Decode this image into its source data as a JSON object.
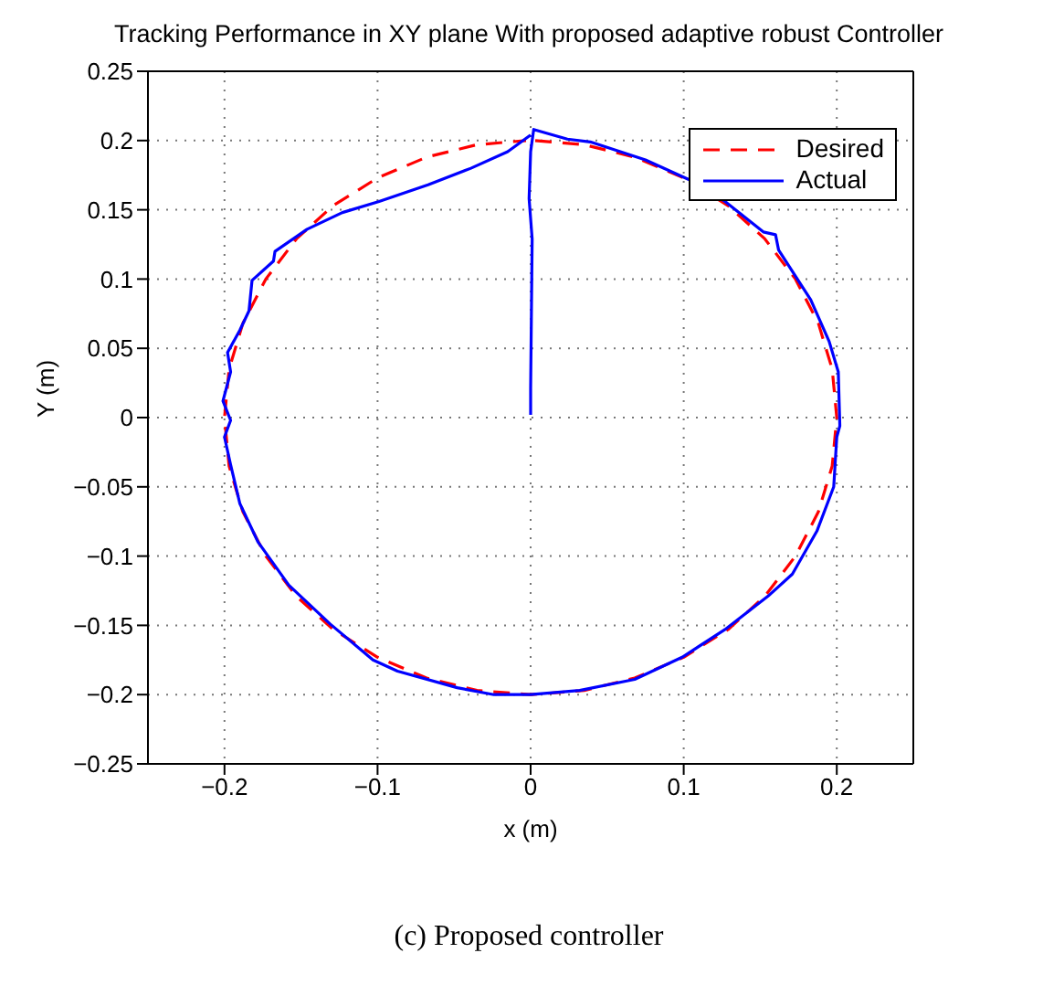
{
  "chart_data": {
    "type": "line",
    "title": "Tracking Performance in XY plane With proposed adaptive robust Controller",
    "xlabel": "x (m)",
    "ylabel": "Y (m)",
    "annotations": [
      "(c) Proposed controller"
    ],
    "xlim": [
      -0.25,
      0.25
    ],
    "xticks": [
      {
        "value": -0.2,
        "label": "−0.2"
      },
      {
        "value": -0.1,
        "label": "−0.1"
      },
      0,
      0.1,
      0.2
    ],
    "ylim": [
      -0.25,
      0.25
    ],
    "yticks": [
      {
        "value": -0.25,
        "label": "−0.25"
      },
      {
        "value": -0.2,
        "label": "−0.2"
      },
      {
        "value": -0.15,
        "label": "−0.15"
      },
      {
        "value": -0.1,
        "label": "−0.1"
      },
      {
        "value": -0.05,
        "label": "−0.05"
      },
      0,
      0.05,
      0.1,
      0.15,
      0.2,
      0.25
    ],
    "grid": true,
    "legend": "top right",
    "marker": "none",
    "series": [
      {
        "name": "Desired",
        "color": "#ff0000",
        "line_style": "dashed",
        "x": [
          0.003,
          0.035,
          0.068,
          0.1,
          0.129,
          0.153,
          0.173,
          0.188,
          0.197,
          0.2,
          0.197,
          0.188,
          0.173,
          0.153,
          0.129,
          0.1,
          0.068,
          0.035,
          0,
          -0.035,
          -0.068,
          -0.1,
          -0.129,
          -0.153,
          -0.173,
          -0.188,
          -0.197,
          -0.2,
          -0.197,
          -0.188,
          -0.173,
          -0.153,
          -0.129,
          -0.1,
          -0.068,
          -0.035,
          -0.003
        ],
        "values": [
          0.2,
          0.197,
          0.188,
          0.173,
          0.153,
          0.129,
          0.1,
          0.068,
          0.035,
          0,
          -0.035,
          -0.068,
          -0.1,
          -0.129,
          -0.153,
          -0.173,
          -0.188,
          -0.197,
          -0.2,
          -0.197,
          -0.188,
          -0.173,
          -0.153,
          -0.129,
          -0.1,
          -0.068,
          -0.035,
          0,
          0.035,
          0.068,
          0.1,
          0.129,
          0.153,
          0.173,
          0.188,
          0.197,
          0.2
        ]
      },
      {
        "name": "Actual",
        "color": "#0000ff",
        "line_style": "solid",
        "x": [
          0,
          0,
          0,
          0.001,
          -0.001,
          0,
          0.002,
          0.024,
          0.039,
          0.075,
          0.103,
          0.127,
          0.152,
          0.16,
          0.162,
          0.183,
          0.195,
          0.201,
          0.202,
          0.2,
          0.198,
          0.187,
          0.171,
          0.155,
          0.127,
          0.099,
          0.068,
          0.032,
          0,
          -0.024,
          -0.048,
          -0.087,
          -0.103,
          -0.131,
          -0.158,
          -0.178,
          -0.19,
          -0.196,
          -0.2,
          -0.196,
          -0.201,
          -0.196,
          -0.198,
          -0.19,
          -0.184,
          -0.182,
          -0.168,
          -0.167,
          -0.146,
          -0.123,
          -0.099,
          -0.067,
          -0.039,
          -0.015,
          0
        ],
        "values": [
          0.002,
          0.01,
          0.021,
          0.129,
          0.158,
          0.192,
          0.208,
          0.201,
          0.199,
          0.186,
          0.172,
          0.156,
          0.134,
          0.132,
          0.121,
          0.085,
          0.055,
          0.033,
          -0.006,
          -0.014,
          -0.05,
          -0.082,
          -0.113,
          -0.129,
          -0.153,
          -0.173,
          -0.189,
          -0.197,
          -0.2,
          -0.2,
          -0.195,
          -0.183,
          -0.175,
          -0.149,
          -0.121,
          -0.09,
          -0.062,
          -0.034,
          -0.014,
          -0.002,
          0.012,
          0.033,
          0.047,
          0.063,
          0.077,
          0.099,
          0.113,
          0.12,
          0.136,
          0.148,
          0.156,
          0.168,
          0.18,
          0.192,
          0.204
        ]
      }
    ]
  }
}
